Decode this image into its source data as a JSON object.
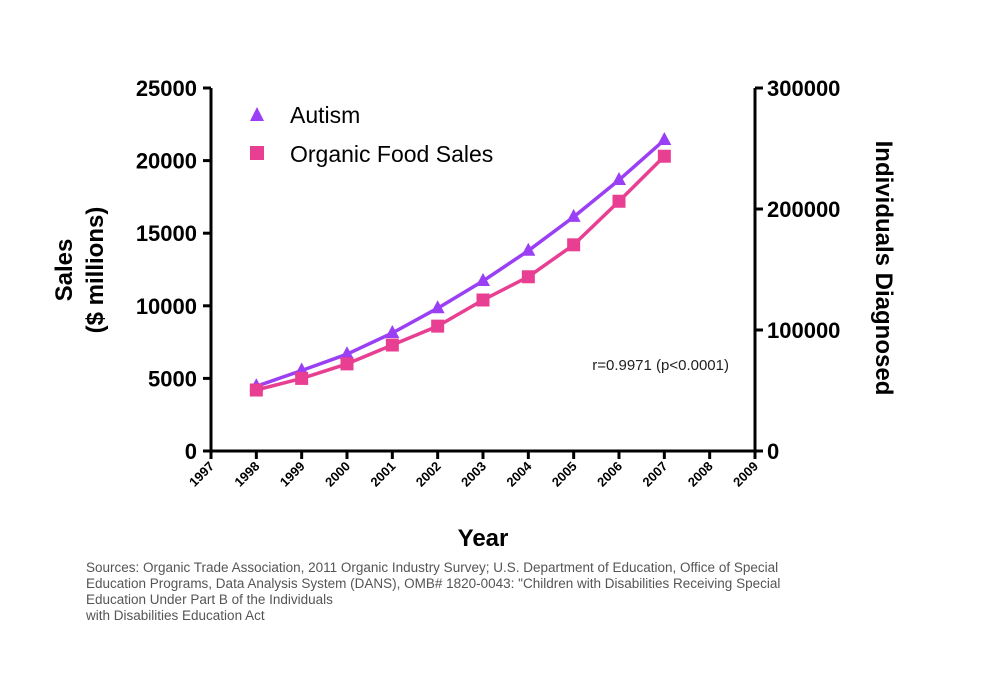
{
  "chart_data": {
    "type": "line",
    "title": "",
    "xlabel": "Year",
    "ylabel_line1": "Sales",
    "ylabel_line2": "($ millions)",
    "y2label": "Individuals Diagnosed",
    "x_ticks": [
      "1997",
      "1998",
      "1999",
      "2000",
      "2001",
      "2002",
      "2003",
      "2004",
      "2005",
      "2006",
      "2007",
      "2008",
      "2009"
    ],
    "xlim": [
      1997,
      2009
    ],
    "y_ticks": [
      "0",
      "5000",
      "10000",
      "15000",
      "20000",
      "25000"
    ],
    "ylim": [
      0,
      25000
    ],
    "y2_ticks": [
      "0",
      "100000",
      "200000",
      "300000"
    ],
    "y2lim": [
      0,
      300000
    ],
    "legend_position": "top-left",
    "series": [
      {
        "name": "Autism",
        "axis": "right",
        "marker": "triangle",
        "color": "#9b3ff5",
        "x": [
          1998,
          1999,
          2000,
          2001,
          2002,
          2003,
          2004,
          2005,
          2006,
          2007
        ],
        "values": [
          53500,
          66500,
          80000,
          97500,
          118000,
          140500,
          165500,
          193500,
          224000,
          257000
        ]
      },
      {
        "name": "Organic Food Sales",
        "axis": "left",
        "marker": "square",
        "color": "#e83f93",
        "x": [
          1998,
          1999,
          2000,
          2001,
          2002,
          2003,
          2004,
          2005,
          2006,
          2007
        ],
        "values": [
          4200,
          5000,
          6000,
          7300,
          8600,
          10400,
          12000,
          14200,
          17200,
          20300
        ]
      }
    ],
    "annotation": "r=0.9971 (p<0.0001)"
  },
  "sources": {
    "line1": "Sources: Organic Trade Association,  2011 Organic Industry Survey; U.S. Department of Education, Office of Special",
    "line2": "Education Programs, Data Analysis System (DANS), OMB# 1820-0043: \"Children with Disabilities Receiving Special",
    "line3": "Education Under Part B of the Individuals",
    "line4": "with Disabilities Education Act"
  }
}
